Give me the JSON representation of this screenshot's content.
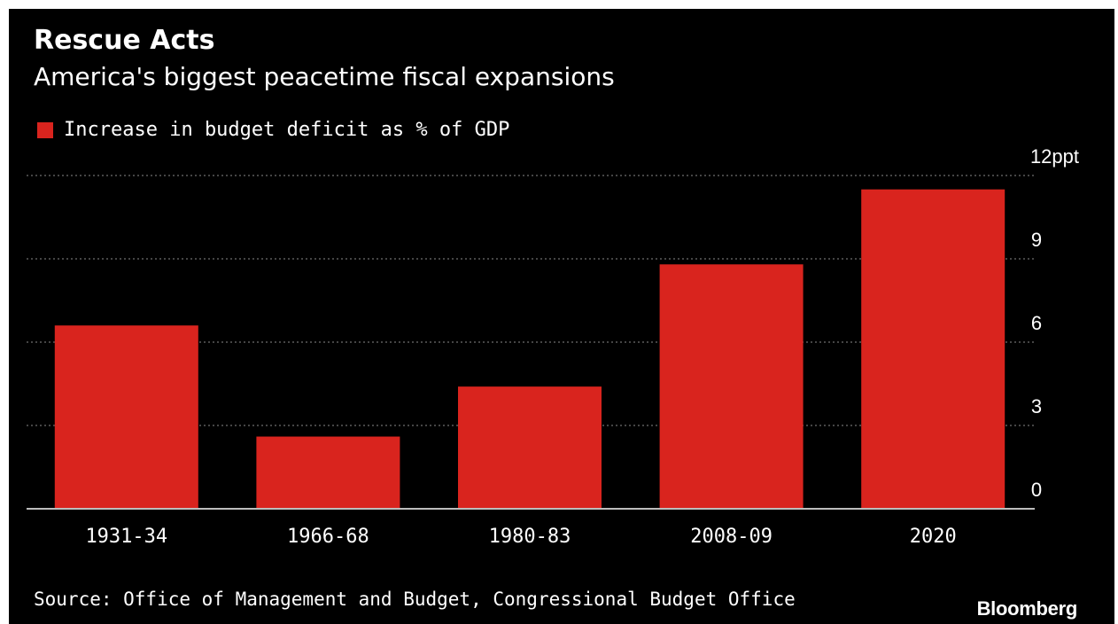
{
  "header": {
    "title": "Rescue Acts",
    "subtitle": "America's biggest peacetime fiscal expansions"
  },
  "legend": {
    "label": "Increase in budget deficit as % of GDP",
    "color": "#d9241e"
  },
  "footer": {
    "source": "Source: Office of Management and Budget, Congressional Budget Office",
    "brand": "Bloomberg"
  },
  "chart_data": {
    "type": "bar",
    "categories": [
      "1931-34",
      "1966-68",
      "1980-83",
      "2008-09",
      "2020"
    ],
    "series": [
      {
        "name": "Increase in budget deficit as % of GDP",
        "values": [
          6.6,
          2.6,
          4.4,
          8.8,
          11.5
        ]
      }
    ],
    "ylim": [
      0,
      12
    ],
    "yticks": [
      0,
      3,
      6,
      9,
      12
    ],
    "ytick_labels": [
      "0",
      "3",
      "6",
      "9",
      "12ppt"
    ],
    "y_axis_side": "right",
    "grid": true,
    "legend_position": "top-left",
    "bar_color": "#d9241e",
    "background": "#000000"
  }
}
